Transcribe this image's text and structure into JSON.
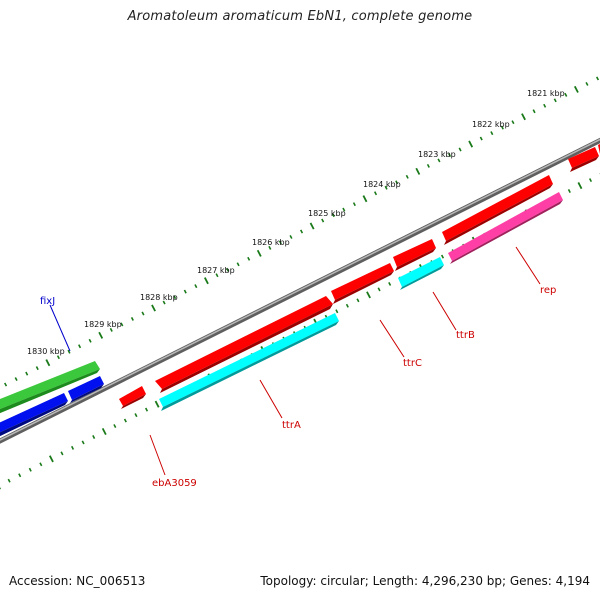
{
  "title": "Aromatoleum aromaticum EbN1, complete genome",
  "footer": {
    "accession": "Accession: NC_006513",
    "summary": "Topology: circular; Length: 4,296,230 bp; Genes: 4,194"
  },
  "scale_labels": [
    "1821 kbp",
    "1822 kbp",
    "1823 kbp",
    "1824 kbp",
    "1825 kbp",
    "1826 kbp",
    "1827 kbp",
    "1828 kbp",
    "1829 kbp",
    "1830 kbp"
  ],
  "genes": [
    {
      "label": "fixJ",
      "color": "#0000cc"
    },
    {
      "label": "ebA3059",
      "color": "#cc0000"
    },
    {
      "label": "ttrA",
      "color": "#cc0000"
    },
    {
      "label": "ttrC",
      "color": "#cc0000"
    },
    {
      "label": "ttrB",
      "color": "#cc0000"
    },
    {
      "label": "rep",
      "color": "#cc0000"
    }
  ],
  "colors": {
    "red": "#ff0000",
    "cyan": "#00ffff",
    "magenta": "#ff3fa6",
    "green": "#3cc83c",
    "blue": "#0010ee",
    "backbone": "#7a7a7a",
    "ticks": "#1a7a1a"
  }
}
